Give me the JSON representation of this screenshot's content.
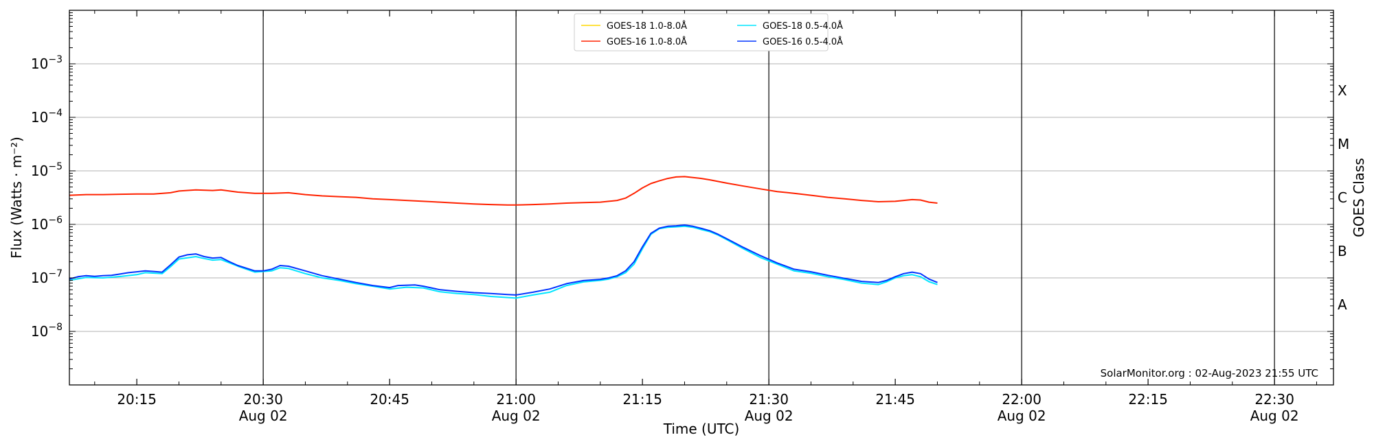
{
  "chart_data": {
    "type": "line",
    "xlabel": "Time (UTC)",
    "ylabel": "Flux (Watts · m⁻²)",
    "y2label": "GOES Class",
    "yscale": "log",
    "xlim": [
      "20:07",
      "22:37"
    ],
    "ylim": [
      1e-09,
      0.01
    ],
    "grid": "horizontal at decades",
    "legend_placement": "top-center",
    "credit": "SolarMonitor.org : 02-Aug-2023 21:55 UTC",
    "x_ticks": [
      {
        "time": "20:15",
        "label": "20:15",
        "date": ""
      },
      {
        "time": "20:30",
        "label": "20:30",
        "date": "Aug 02"
      },
      {
        "time": "20:45",
        "label": "20:45",
        "date": ""
      },
      {
        "time": "21:00",
        "label": "21:00",
        "date": "Aug 02"
      },
      {
        "time": "21:15",
        "label": "21:15",
        "date": ""
      },
      {
        "time": "21:30",
        "label": "21:30",
        "date": "Aug 02"
      },
      {
        "time": "21:45",
        "label": "21:45",
        "date": ""
      },
      {
        "time": "22:00",
        "label": "22:00",
        "date": "Aug 02"
      },
      {
        "time": "22:15",
        "label": "22:15",
        "date": ""
      },
      {
        "time": "22:30",
        "label": "22:30",
        "date": "Aug 02"
      }
    ],
    "vertical_lines": [
      "20:30",
      "21:00",
      "21:30",
      "22:00",
      "22:30"
    ],
    "y_ticks": [
      {
        "value": 1e-08,
        "mantissa": "10",
        "exponent": "−8"
      },
      {
        "value": 1e-07,
        "mantissa": "10",
        "exponent": "−7"
      },
      {
        "value": 1e-06,
        "mantissa": "10",
        "exponent": "−6"
      },
      {
        "value": 1e-05,
        "mantissa": "10",
        "exponent": "−5"
      },
      {
        "value": 0.0001,
        "mantissa": "10",
        "exponent": "−4"
      },
      {
        "value": 0.001,
        "mantissa": "10",
        "exponent": "−3"
      }
    ],
    "goes_classes": [
      {
        "label": "A",
        "value": 3.16e-08
      },
      {
        "label": "B",
        "value": 3.16e-07
      },
      {
        "label": "C",
        "value": 3.16e-06
      },
      {
        "label": "M",
        "value": 3.16e-05
      },
      {
        "label": "X",
        "value": 0.000316
      }
    ],
    "series": [
      {
        "name": "GOES-18 1.0-8.0Å",
        "color": "#ffd700",
        "points": []
      },
      {
        "name": "GOES-18 0.5-4.0Å",
        "color": "#00e5ff",
        "points": [
          [
            "20:07",
            9e-08
          ],
          [
            "20:09",
            1.02e-07
          ],
          [
            "20:11",
            1e-07
          ],
          [
            "20:13",
            1.06e-07
          ],
          [
            "20:15",
            1.15e-07
          ],
          [
            "20:16",
            1.25e-07
          ],
          [
            "20:18",
            1.2e-07
          ],
          [
            "20:19",
            1.62e-07
          ],
          [
            "20:20",
            2.25e-07
          ],
          [
            "20:22",
            2.5e-07
          ],
          [
            "20:23",
            2.3e-07
          ],
          [
            "20:24",
            2.15e-07
          ],
          [
            "20:25",
            2.2e-07
          ],
          [
            "20:27",
            1.65e-07
          ],
          [
            "20:29",
            1.28e-07
          ],
          [
            "20:31",
            1.35e-07
          ],
          [
            "20:32",
            1.55e-07
          ],
          [
            "20:33",
            1.5e-07
          ],
          [
            "20:35",
            1.2e-07
          ],
          [
            "20:37",
            1e-07
          ],
          [
            "20:39",
            9e-08
          ],
          [
            "20:41",
            7.8e-08
          ],
          [
            "20:43",
            7e-08
          ],
          [
            "20:45",
            6.2e-08
          ],
          [
            "20:47",
            6.7e-08
          ],
          [
            "20:49",
            6.5e-08
          ],
          [
            "20:51",
            5.5e-08
          ],
          [
            "20:53",
            5.1e-08
          ],
          [
            "20:55",
            4.9e-08
          ],
          [
            "20:57",
            4.5e-08
          ],
          [
            "20:59",
            4.3e-08
          ],
          [
            "21:00",
            4.2e-08
          ],
          [
            "21:02",
            4.8e-08
          ],
          [
            "21:04",
            5.4e-08
          ],
          [
            "21:06",
            7.2e-08
          ],
          [
            "21:08",
            8.4e-08
          ],
          [
            "21:10",
            9e-08
          ],
          [
            "21:11",
            9.5e-08
          ],
          [
            "21:12",
            1.05e-07
          ],
          [
            "21:13",
            1.25e-07
          ],
          [
            "21:14",
            1.8e-07
          ],
          [
            "21:15",
            3.5e-07
          ],
          [
            "21:16",
            6.5e-07
          ],
          [
            "21:17",
            8.3e-07
          ],
          [
            "21:18",
            8.8e-07
          ],
          [
            "21:19",
            9e-07
          ],
          [
            "21:20",
            9.2e-07
          ],
          [
            "21:21",
            8.8e-07
          ],
          [
            "21:22",
            8e-07
          ],
          [
            "21:23",
            7.3e-07
          ],
          [
            "21:24",
            6.3e-07
          ],
          [
            "21:25",
            5.2e-07
          ],
          [
            "21:27",
            3.5e-07
          ],
          [
            "21:29",
            2.4e-07
          ],
          [
            "21:31",
            1.8e-07
          ],
          [
            "21:33",
            1.35e-07
          ],
          [
            "21:35",
            1.22e-07
          ],
          [
            "21:37",
            1.05e-07
          ],
          [
            "21:39",
            9.3e-08
          ],
          [
            "21:41",
            8e-08
          ],
          [
            "21:43",
            7.5e-08
          ],
          [
            "21:44",
            8.5e-08
          ],
          [
            "21:45",
            1e-07
          ],
          [
            "21:46",
            1.1e-07
          ],
          [
            "21:47",
            1.15e-07
          ],
          [
            "21:48",
            1.05e-07
          ],
          [
            "21:49",
            8.5e-08
          ],
          [
            "21:50",
            7.5e-08
          ]
        ]
      },
      {
        "name": "GOES-16 1.0-8.0Å",
        "color": "#ff2200",
        "points": [
          [
            "20:07",
            3.5e-06
          ],
          [
            "20:09",
            3.6e-06
          ],
          [
            "20:11",
            3.6e-06
          ],
          [
            "20:13",
            3.65e-06
          ],
          [
            "20:15",
            3.7e-06
          ],
          [
            "20:17",
            3.7e-06
          ],
          [
            "20:19",
            3.9e-06
          ],
          [
            "20:20",
            4.2e-06
          ],
          [
            "20:22",
            4.4e-06
          ],
          [
            "20:24",
            4.3e-06
          ],
          [
            "20:25",
            4.4e-06
          ],
          [
            "20:27",
            4e-06
          ],
          [
            "20:29",
            3.8e-06
          ],
          [
            "20:31",
            3.8e-06
          ],
          [
            "20:33",
            3.9e-06
          ],
          [
            "20:35",
            3.6e-06
          ],
          [
            "20:37",
            3.4e-06
          ],
          [
            "20:39",
            3.3e-06
          ],
          [
            "20:41",
            3.2e-06
          ],
          [
            "20:43",
            3e-06
          ],
          [
            "20:45",
            2.9e-06
          ],
          [
            "20:47",
            2.8e-06
          ],
          [
            "20:49",
            2.7e-06
          ],
          [
            "20:51",
            2.6e-06
          ],
          [
            "20:53",
            2.5e-06
          ],
          [
            "20:55",
            2.4e-06
          ],
          [
            "20:57",
            2.35e-06
          ],
          [
            "20:59",
            2.3e-06
          ],
          [
            "21:00",
            2.3e-06
          ],
          [
            "21:02",
            2.35e-06
          ],
          [
            "21:04",
            2.4e-06
          ],
          [
            "21:06",
            2.5e-06
          ],
          [
            "21:08",
            2.55e-06
          ],
          [
            "21:10",
            2.6e-06
          ],
          [
            "21:11",
            2.7e-06
          ],
          [
            "21:12",
            2.8e-06
          ],
          [
            "21:13",
            3.1e-06
          ],
          [
            "21:14",
            3.8e-06
          ],
          [
            "21:15",
            4.8e-06
          ],
          [
            "21:16",
            5.8e-06
          ],
          [
            "21:17",
            6.5e-06
          ],
          [
            "21:18",
            7.2e-06
          ],
          [
            "21:19",
            7.7e-06
          ],
          [
            "21:20",
            7.8e-06
          ],
          [
            "21:21",
            7.5e-06
          ],
          [
            "21:22",
            7.2e-06
          ],
          [
            "21:23",
            6.8e-06
          ],
          [
            "21:25",
            5.9e-06
          ],
          [
            "21:27",
            5.2e-06
          ],
          [
            "21:29",
            4.6e-06
          ],
          [
            "21:31",
            4.1e-06
          ],
          [
            "21:33",
            3.8e-06
          ],
          [
            "21:35",
            3.5e-06
          ],
          [
            "21:37",
            3.2e-06
          ],
          [
            "21:39",
            3e-06
          ],
          [
            "21:41",
            2.8e-06
          ],
          [
            "21:43",
            2.65e-06
          ],
          [
            "21:45",
            2.7e-06
          ],
          [
            "21:47",
            2.9e-06
          ],
          [
            "21:48",
            2.85e-06
          ],
          [
            "21:49",
            2.6e-06
          ],
          [
            "21:50",
            2.5e-06
          ]
        ]
      },
      {
        "name": "GOES-16 0.5-4.0Å",
        "color": "#0033ff",
        "points": [
          [
            "20:07",
            9.5e-08
          ],
          [
            "20:08",
            1.05e-07
          ],
          [
            "20:09",
            1.1e-07
          ],
          [
            "20:10",
            1.07e-07
          ],
          [
            "20:11",
            1.1e-07
          ],
          [
            "20:12",
            1.12e-07
          ],
          [
            "20:13",
            1.18e-07
          ],
          [
            "20:14",
            1.25e-07
          ],
          [
            "20:15",
            1.3e-07
          ],
          [
            "20:16",
            1.35e-07
          ],
          [
            "20:17",
            1.32e-07
          ],
          [
            "20:18",
            1.28e-07
          ],
          [
            "20:19",
            1.75e-07
          ],
          [
            "20:20",
            2.45e-07
          ],
          [
            "20:21",
            2.7e-07
          ],
          [
            "20:22",
            2.8e-07
          ],
          [
            "20:23",
            2.5e-07
          ],
          [
            "20:24",
            2.35e-07
          ],
          [
            "20:25",
            2.4e-07
          ],
          [
            "20:26",
            2e-07
          ],
          [
            "20:27",
            1.7e-07
          ],
          [
            "20:29",
            1.35e-07
          ],
          [
            "20:30",
            1.35e-07
          ],
          [
            "20:31",
            1.45e-07
          ],
          [
            "20:32",
            1.7e-07
          ],
          [
            "20:33",
            1.65e-07
          ],
          [
            "20:35",
            1.35e-07
          ],
          [
            "20:37",
            1.1e-07
          ],
          [
            "20:39",
            9.5e-08
          ],
          [
            "20:41",
            8.2e-08
          ],
          [
            "20:43",
            7.2e-08
          ],
          [
            "20:45",
            6.6e-08
          ],
          [
            "20:46",
            7.2e-08
          ],
          [
            "20:48",
            7.4e-08
          ],
          [
            "20:49",
            7e-08
          ],
          [
            "20:51",
            6e-08
          ],
          [
            "20:53",
            5.6e-08
          ],
          [
            "20:55",
            5.3e-08
          ],
          [
            "20:57",
            5.1e-08
          ],
          [
            "20:59",
            4.9e-08
          ],
          [
            "21:00",
            4.8e-08
          ],
          [
            "21:02",
            5.4e-08
          ],
          [
            "21:04",
            6.2e-08
          ],
          [
            "21:06",
            7.8e-08
          ],
          [
            "21:08",
            8.9e-08
          ],
          [
            "21:10",
            9.4e-08
          ],
          [
            "21:11",
            1e-07
          ],
          [
            "21:12",
            1.1e-07
          ],
          [
            "21:13",
            1.35e-07
          ],
          [
            "21:14",
            2e-07
          ],
          [
            "21:15",
            3.8e-07
          ],
          [
            "21:16",
            6.8e-07
          ],
          [
            "21:17",
            8.5e-07
          ],
          [
            "21:18",
            9.2e-07
          ],
          [
            "21:19",
            9.4e-07
          ],
          [
            "21:20",
            9.7e-07
          ],
          [
            "21:21",
            9.2e-07
          ],
          [
            "21:22",
            8.4e-07
          ],
          [
            "21:23",
            7.6e-07
          ],
          [
            "21:24",
            6.5e-07
          ],
          [
            "21:25",
            5.4e-07
          ],
          [
            "21:27",
            3.7e-07
          ],
          [
            "21:29",
            2.6e-07
          ],
          [
            "21:31",
            1.9e-07
          ],
          [
            "21:33",
            1.45e-07
          ],
          [
            "21:35",
            1.3e-07
          ],
          [
            "21:37",
            1.12e-07
          ],
          [
            "21:39",
            9.8e-08
          ],
          [
            "21:41",
            8.6e-08
          ],
          [
            "21:43",
            8.2e-08
          ],
          [
            "21:44",
            9e-08
          ],
          [
            "21:45",
            1.05e-07
          ],
          [
            "21:46",
            1.2e-07
          ],
          [
            "21:47",
            1.28e-07
          ],
          [
            "21:48",
            1.2e-07
          ],
          [
            "21:49",
            9.5e-08
          ],
          [
            "21:50",
            8.2e-08
          ]
        ]
      }
    ]
  }
}
